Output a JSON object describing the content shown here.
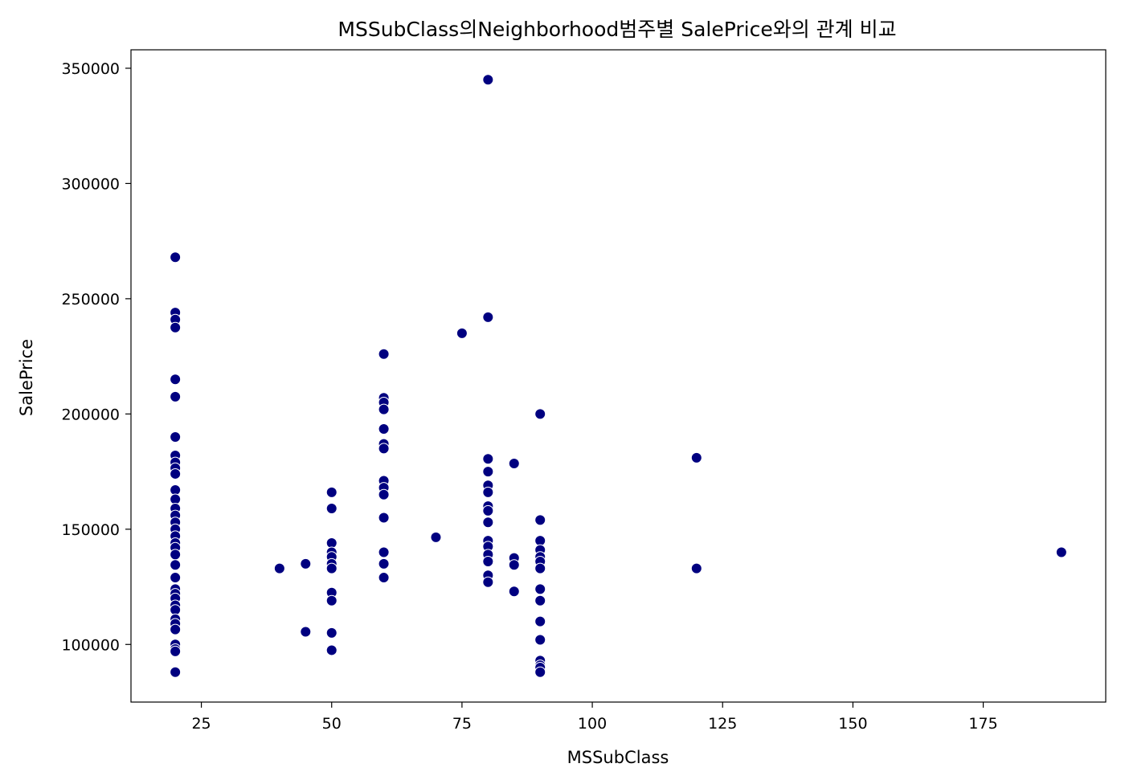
{
  "chart_data": {
    "type": "scatter",
    "title": "MSSubClass의Neighborhood범주별 SalePrice와의 관계 비교",
    "xlabel": "MSSubClass",
    "ylabel": "SalePrice",
    "xlim": [
      11.5,
      198.5
    ],
    "ylim": [
      75000,
      358000
    ],
    "xticks": [
      25,
      50,
      75,
      100,
      125,
      150,
      175
    ],
    "yticks": [
      100000,
      150000,
      200000,
      250000,
      300000,
      350000
    ],
    "grid": false,
    "legend": "none",
    "marker_color": "#000080",
    "marker_edge_color": "#ffffff",
    "points": [
      [
        20,
        268000
      ],
      [
        20,
        244000
      ],
      [
        20,
        241000
      ],
      [
        20,
        237500
      ],
      [
        20,
        215000
      ],
      [
        20,
        207500
      ],
      [
        20,
        190000
      ],
      [
        20,
        182000
      ],
      [
        20,
        179000
      ],
      [
        20,
        176500
      ],
      [
        20,
        174000
      ],
      [
        20,
        167000
      ],
      [
        20,
        163000
      ],
      [
        20,
        159000
      ],
      [
        20,
        156000
      ],
      [
        20,
        153000
      ],
      [
        20,
        150000
      ],
      [
        20,
        147000
      ],
      [
        20,
        144000
      ],
      [
        20,
        142000
      ],
      [
        20,
        139000
      ],
      [
        20,
        134500
      ],
      [
        20,
        129000
      ],
      [
        20,
        124000
      ],
      [
        20,
        122000
      ],
      [
        20,
        120000
      ],
      [
        20,
        117000
      ],
      [
        20,
        115000
      ],
      [
        20,
        111000
      ],
      [
        20,
        109000
      ],
      [
        20,
        106500
      ],
      [
        20,
        100000
      ],
      [
        20,
        98000
      ],
      [
        20,
        97000
      ],
      [
        20,
        88000
      ],
      [
        40,
        133000
      ],
      [
        45,
        135000
      ],
      [
        45,
        105500
      ],
      [
        50,
        166000
      ],
      [
        50,
        159000
      ],
      [
        50,
        144000
      ],
      [
        50,
        140000
      ],
      [
        50,
        138000
      ],
      [
        50,
        135000
      ],
      [
        50,
        133000
      ],
      [
        50,
        122500
      ],
      [
        50,
        119000
      ],
      [
        50,
        105000
      ],
      [
        50,
        97500
      ],
      [
        60,
        226000
      ],
      [
        60,
        207000
      ],
      [
        60,
        205000
      ],
      [
        60,
        202000
      ],
      [
        60,
        193500
      ],
      [
        60,
        187000
      ],
      [
        60,
        185000
      ],
      [
        60,
        171000
      ],
      [
        60,
        168000
      ],
      [
        60,
        165000
      ],
      [
        60,
        155000
      ],
      [
        60,
        140000
      ],
      [
        60,
        135000
      ],
      [
        60,
        129000
      ],
      [
        70,
        146500
      ],
      [
        75,
        235000
      ],
      [
        80,
        345000
      ],
      [
        80,
        242000
      ],
      [
        80,
        180500
      ],
      [
        80,
        175000
      ],
      [
        80,
        169000
      ],
      [
        80,
        166000
      ],
      [
        80,
        160000
      ],
      [
        80,
        158000
      ],
      [
        80,
        153000
      ],
      [
        80,
        145000
      ],
      [
        80,
        142500
      ],
      [
        80,
        139000
      ],
      [
        80,
        136000
      ],
      [
        80,
        130000
      ],
      [
        80,
        127000
      ],
      [
        85,
        178500
      ],
      [
        85,
        137500
      ],
      [
        85,
        134500
      ],
      [
        85,
        123000
      ],
      [
        90,
        200000
      ],
      [
        90,
        154000
      ],
      [
        90,
        145000
      ],
      [
        90,
        141000
      ],
      [
        90,
        138000
      ],
      [
        90,
        136000
      ],
      [
        90,
        133000
      ],
      [
        90,
        124000
      ],
      [
        90,
        119000
      ],
      [
        90,
        110000
      ],
      [
        90,
        102000
      ],
      [
        90,
        93000
      ],
      [
        90,
        91000
      ],
      [
        90,
        90000
      ],
      [
        90,
        88000
      ],
      [
        120,
        181000
      ],
      [
        120,
        133000
      ],
      [
        190,
        140000
      ]
    ]
  }
}
